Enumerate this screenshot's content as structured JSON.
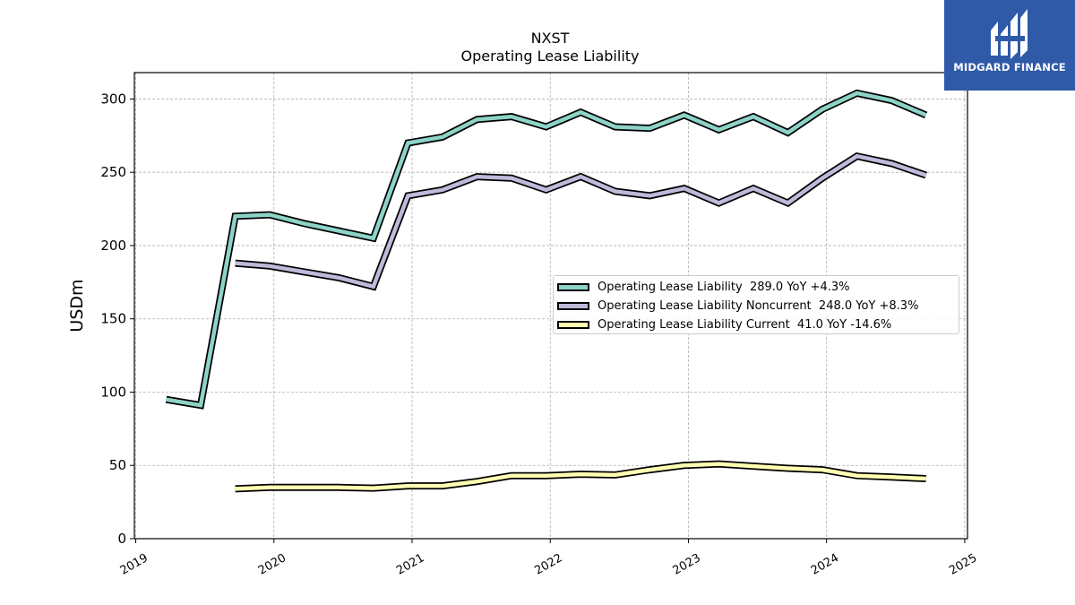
{
  "brand": {
    "name": "MIDGARD FINANCE",
    "color": "#2f5aa8"
  },
  "chart_data": {
    "type": "line",
    "title": "NXST",
    "subtitle": "Operating Lease Liability",
    "ylabel": "USDm",
    "xlabel": "",
    "xlim": [
      2018.99,
      2025.02
    ],
    "ylim": [
      0,
      318
    ],
    "yticks": [
      0,
      50,
      100,
      150,
      200,
      250,
      300
    ],
    "xticks": [
      2019,
      2020,
      2021,
      2022,
      2023,
      2024,
      2025
    ],
    "xtick_labels": [
      "2019",
      "2020",
      "2021",
      "2022",
      "2023",
      "2024",
      "2025"
    ],
    "grid": true,
    "legend_position": "center-right",
    "series": [
      {
        "name": "Operating Lease Liability",
        "legend_label": "Operating Lease Liability  289.0 YoY +4.3%",
        "color": "#8dd3c7",
        "x": [
          2019.22,
          2019.47,
          2019.72,
          2019.97,
          2020.22,
          2020.47,
          2020.72,
          2020.97,
          2021.22,
          2021.47,
          2021.72,
          2021.97,
          2022.22,
          2022.47,
          2022.72,
          2022.97,
          2023.22,
          2023.47,
          2023.72,
          2023.97,
          2024.22,
          2024.47,
          2024.72
        ],
        "values": [
          95,
          91,
          220,
          221,
          215,
          210,
          205,
          270,
          274,
          286,
          288,
          281,
          291,
          281,
          280,
          289,
          279,
          288,
          277,
          293,
          304,
          299,
          289
        ]
      },
      {
        "name": "Operating Lease Liability Noncurrent",
        "legend_label": "Operating Lease Liability Noncurrent  248.0 YoY +8.3%",
        "color": "#bebada",
        "x": [
          2019.72,
          2019.97,
          2020.22,
          2020.47,
          2020.72,
          2020.97,
          2021.22,
          2021.47,
          2021.72,
          2021.97,
          2022.22,
          2022.47,
          2022.72,
          2022.97,
          2023.22,
          2023.47,
          2023.72,
          2023.97,
          2024.22,
          2024.47,
          2024.72
        ],
        "values": [
          188,
          186,
          182,
          178,
          172,
          234,
          238,
          247,
          246,
          238,
          247,
          237,
          234,
          239,
          229,
          239,
          229,
          246,
          261,
          256,
          248
        ]
      },
      {
        "name": "Operating Lease Liability Current",
        "legend_label": "Operating Lease Liability Current  41.0 YoY -14.6%",
        "color": "#ffffb3",
        "x": [
          2019.72,
          2019.97,
          2020.22,
          2020.47,
          2020.72,
          2020.97,
          2021.22,
          2021.47,
          2021.72,
          2021.97,
          2022.22,
          2022.47,
          2022.72,
          2022.97,
          2023.22,
          2023.47,
          2023.72,
          2023.97,
          2024.22,
          2024.47,
          2024.72
        ],
        "values": [
          34,
          35,
          35,
          35,
          34.5,
          36,
          36,
          39,
          43,
          43,
          44,
          43.5,
          47,
          50,
          51,
          49.5,
          48,
          47,
          43,
          42,
          41
        ]
      }
    ]
  }
}
